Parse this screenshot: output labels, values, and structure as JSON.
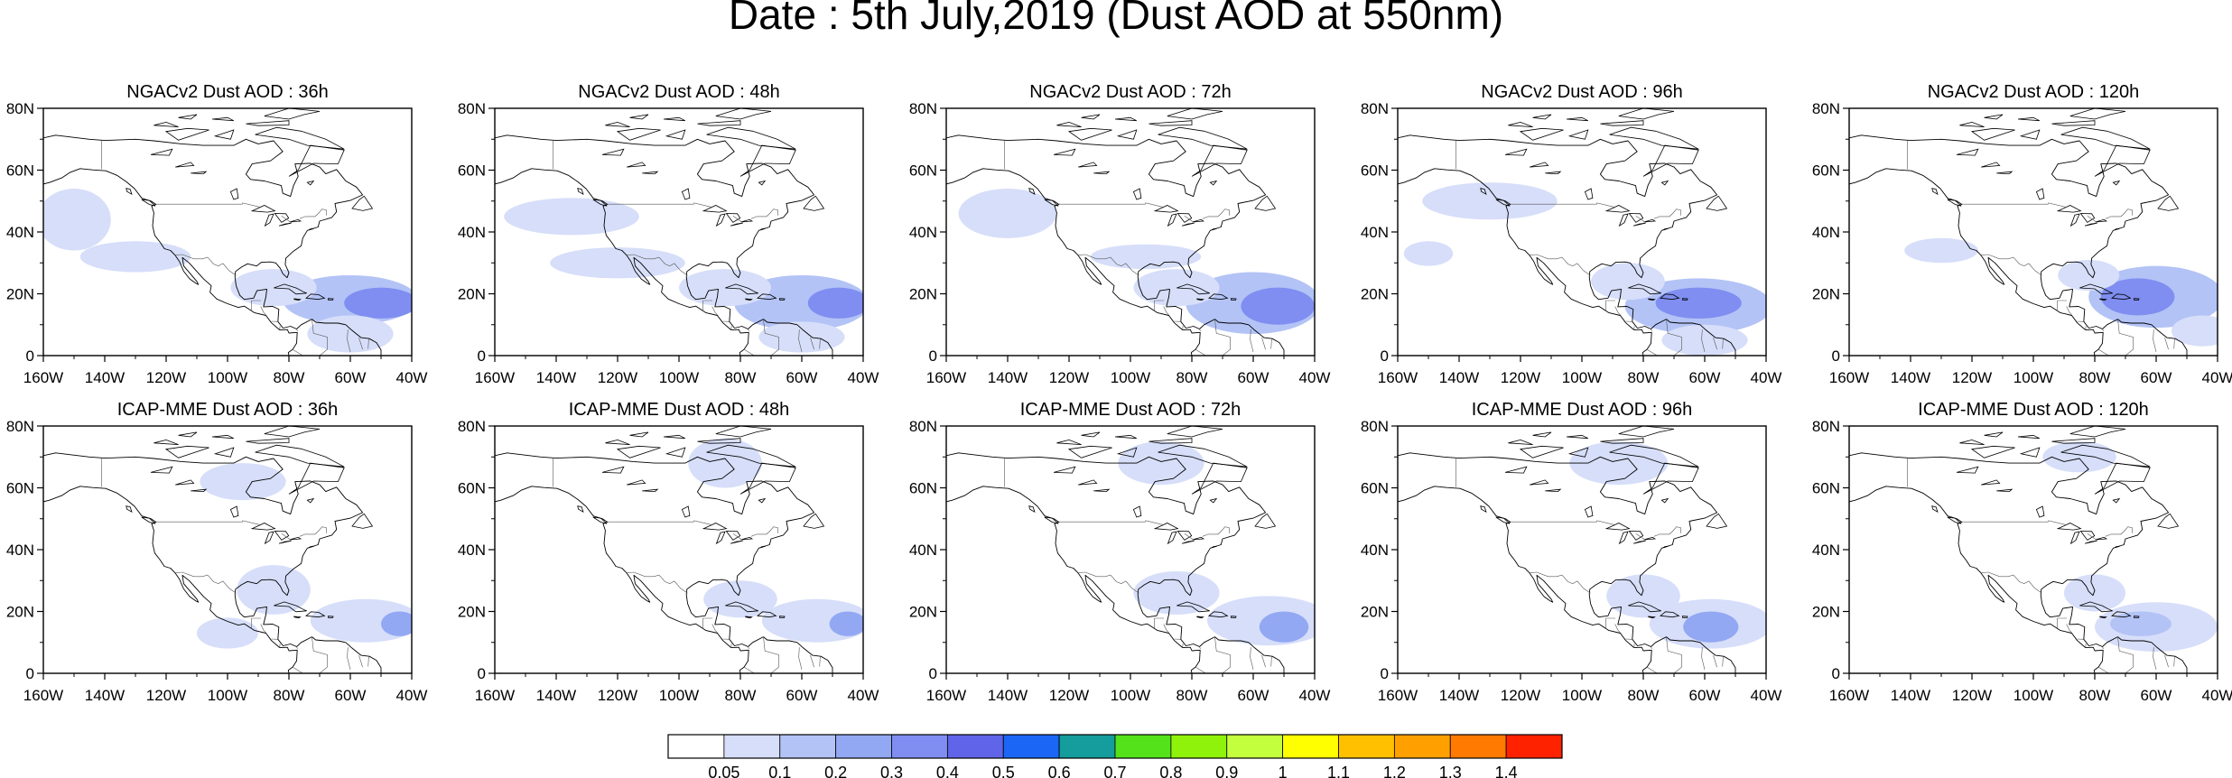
{
  "title": "Date : 5th July,2019 (Dust AOD at 550nm)",
  "map_extent": {
    "lon": [
      -160,
      -40
    ],
    "lat": [
      0,
      80
    ]
  },
  "lon_ticks": [
    "160W",
    "140W",
    "120W",
    "100W",
    "80W",
    "60W",
    "40W"
  ],
  "lat_ticks": [
    "80N",
    "60N",
    "40N",
    "20N",
    "0"
  ],
  "panels": [
    {
      "title": "NGACv2 Dust AOD : 36h",
      "model": "NGACv2",
      "lead": "36h",
      "blobs": [
        {
          "lon": -60,
          "lat": 18,
          "rx": 22,
          "ry": 8,
          "level": 2
        },
        {
          "lon": -50,
          "lat": 17,
          "rx": 12,
          "ry": 5,
          "level": 4
        },
        {
          "lon": -85,
          "lat": 22,
          "rx": 14,
          "ry": 6,
          "level": 1
        },
        {
          "lon": -150,
          "lat": 44,
          "rx": 12,
          "ry": 10,
          "level": 1
        },
        {
          "lon": -130,
          "lat": 32,
          "rx": 18,
          "ry": 5,
          "level": 1
        },
        {
          "lon": -60,
          "lat": 7,
          "rx": 14,
          "ry": 6,
          "level": 1
        }
      ]
    },
    {
      "title": "NGACv2 Dust AOD : 48h",
      "model": "NGACv2",
      "lead": "48h",
      "blobs": [
        {
          "lon": -60,
          "lat": 17,
          "rx": 22,
          "ry": 9,
          "level": 2
        },
        {
          "lon": -48,
          "lat": 17,
          "rx": 10,
          "ry": 5,
          "level": 4
        },
        {
          "lon": -85,
          "lat": 22,
          "rx": 15,
          "ry": 6,
          "level": 1
        },
        {
          "lon": -135,
          "lat": 45,
          "rx": 22,
          "ry": 6,
          "level": 1
        },
        {
          "lon": -120,
          "lat": 30,
          "rx": 22,
          "ry": 5,
          "level": 1
        },
        {
          "lon": -60,
          "lat": 6,
          "rx": 14,
          "ry": 5,
          "level": 1
        }
      ]
    },
    {
      "title": "NGACv2 Dust AOD : 72h",
      "model": "NGACv2",
      "lead": "72h",
      "blobs": [
        {
          "lon": -60,
          "lat": 17,
          "rx": 22,
          "ry": 10,
          "level": 2
        },
        {
          "lon": -52,
          "lat": 16,
          "rx": 12,
          "ry": 6,
          "level": 4
        },
        {
          "lon": -85,
          "lat": 22,
          "rx": 14,
          "ry": 6,
          "level": 1
        },
        {
          "lon": -140,
          "lat": 46,
          "rx": 16,
          "ry": 8,
          "level": 1
        },
        {
          "lon": -95,
          "lat": 32,
          "rx": 18,
          "ry": 4,
          "level": 1
        }
      ]
    },
    {
      "title": "NGACv2 Dust AOD : 96h",
      "model": "NGACv2",
      "lead": "96h",
      "blobs": [
        {
          "lon": -62,
          "lat": 16,
          "rx": 24,
          "ry": 9,
          "level": 2
        },
        {
          "lon": -62,
          "lat": 17,
          "rx": 14,
          "ry": 5,
          "level": 4
        },
        {
          "lon": -85,
          "lat": 24,
          "rx": 12,
          "ry": 6,
          "level": 1
        },
        {
          "lon": -130,
          "lat": 50,
          "rx": 22,
          "ry": 6,
          "level": 1
        },
        {
          "lon": -150,
          "lat": 33,
          "rx": 8,
          "ry": 4,
          "level": 1
        },
        {
          "lon": -60,
          "lat": 5,
          "rx": 14,
          "ry": 5,
          "level": 1
        }
      ]
    },
    {
      "title": "NGACv2 Dust AOD : 120h",
      "model": "NGACv2",
      "lead": "120h",
      "blobs": [
        {
          "lon": -60,
          "lat": 19,
          "rx": 22,
          "ry": 10,
          "level": 2
        },
        {
          "lon": -66,
          "lat": 19,
          "rx": 12,
          "ry": 6,
          "level": 4
        },
        {
          "lon": -82,
          "lat": 26,
          "rx": 10,
          "ry": 5,
          "level": 1
        },
        {
          "lon": -130,
          "lat": 34,
          "rx": 12,
          "ry": 4,
          "level": 1
        },
        {
          "lon": -45,
          "lat": 8,
          "rx": 10,
          "ry": 5,
          "level": 1
        }
      ]
    },
    {
      "title": "ICAP-MME Dust AOD : 36h",
      "model": "ICAP-MME",
      "lead": "36h",
      "blobs": [
        {
          "lon": -55,
          "lat": 17,
          "rx": 18,
          "ry": 7,
          "level": 1
        },
        {
          "lon": -44,
          "lat": 16,
          "rx": 6,
          "ry": 4,
          "level": 3
        },
        {
          "lon": -85,
          "lat": 27,
          "rx": 12,
          "ry": 8,
          "level": 1
        },
        {
          "lon": -100,
          "lat": 13,
          "rx": 10,
          "ry": 5,
          "level": 1
        },
        {
          "lon": -95,
          "lat": 62,
          "rx": 14,
          "ry": 6,
          "level": 1
        }
      ]
    },
    {
      "title": "ICAP-MME Dust AOD : 48h",
      "model": "ICAP-MME",
      "lead": "48h",
      "blobs": [
        {
          "lon": -55,
          "lat": 17,
          "rx": 18,
          "ry": 7,
          "level": 1
        },
        {
          "lon": -45,
          "lat": 16,
          "rx": 6,
          "ry": 4,
          "level": 3
        },
        {
          "lon": -80,
          "lat": 24,
          "rx": 12,
          "ry": 6,
          "level": 1
        },
        {
          "lon": -85,
          "lat": 68,
          "rx": 12,
          "ry": 8,
          "level": 1
        }
      ]
    },
    {
      "title": "ICAP-MME Dust AOD : 72h",
      "model": "ICAP-MME",
      "lead": "72h",
      "blobs": [
        {
          "lon": -55,
          "lat": 17,
          "rx": 20,
          "ry": 8,
          "level": 1
        },
        {
          "lon": -50,
          "lat": 15,
          "rx": 8,
          "ry": 5,
          "level": 3
        },
        {
          "lon": -85,
          "lat": 26,
          "rx": 14,
          "ry": 7,
          "level": 1
        },
        {
          "lon": -90,
          "lat": 68,
          "rx": 14,
          "ry": 7,
          "level": 1
        }
      ]
    },
    {
      "title": "ICAP-MME Dust AOD : 96h",
      "model": "ICAP-MME",
      "lead": "96h",
      "blobs": [
        {
          "lon": -58,
          "lat": 16,
          "rx": 20,
          "ry": 8,
          "level": 1
        },
        {
          "lon": -58,
          "lat": 15,
          "rx": 9,
          "ry": 5,
          "level": 3
        },
        {
          "lon": -80,
          "lat": 25,
          "rx": 12,
          "ry": 7,
          "level": 1
        },
        {
          "lon": -88,
          "lat": 68,
          "rx": 16,
          "ry": 7,
          "level": 1
        }
      ]
    },
    {
      "title": "ICAP-MME Dust AOD : 120h",
      "model": "ICAP-MME",
      "lead": "120h",
      "blobs": [
        {
          "lon": -60,
          "lat": 15,
          "rx": 20,
          "ry": 8,
          "level": 1
        },
        {
          "lon": -65,
          "lat": 16,
          "rx": 10,
          "ry": 4,
          "level": 2
        },
        {
          "lon": -80,
          "lat": 26,
          "rx": 10,
          "ry": 6,
          "level": 1
        },
        {
          "lon": -85,
          "lat": 70,
          "rx": 12,
          "ry": 5,
          "level": 1
        }
      ]
    }
  ],
  "colorbar": {
    "labels": [
      "0.05",
      "0.1",
      "0.2",
      "0.3",
      "0.4",
      "0.5",
      "0.6",
      "0.7",
      "0.8",
      "0.9",
      "1",
      "1.1",
      "1.2",
      "1.3",
      "1.4"
    ],
    "colors": [
      "#ffffff",
      "#d6def9",
      "#b3c3f6",
      "#93a8f3",
      "#7f8ef0",
      "#5f64e8",
      "#1b66f5",
      "#159c9c",
      "#54e21b",
      "#8ff20a",
      "#c4ff3d",
      "#ffff00",
      "#ffc000",
      "#ffa000",
      "#ff7a00",
      "#ff2200"
    ]
  }
}
